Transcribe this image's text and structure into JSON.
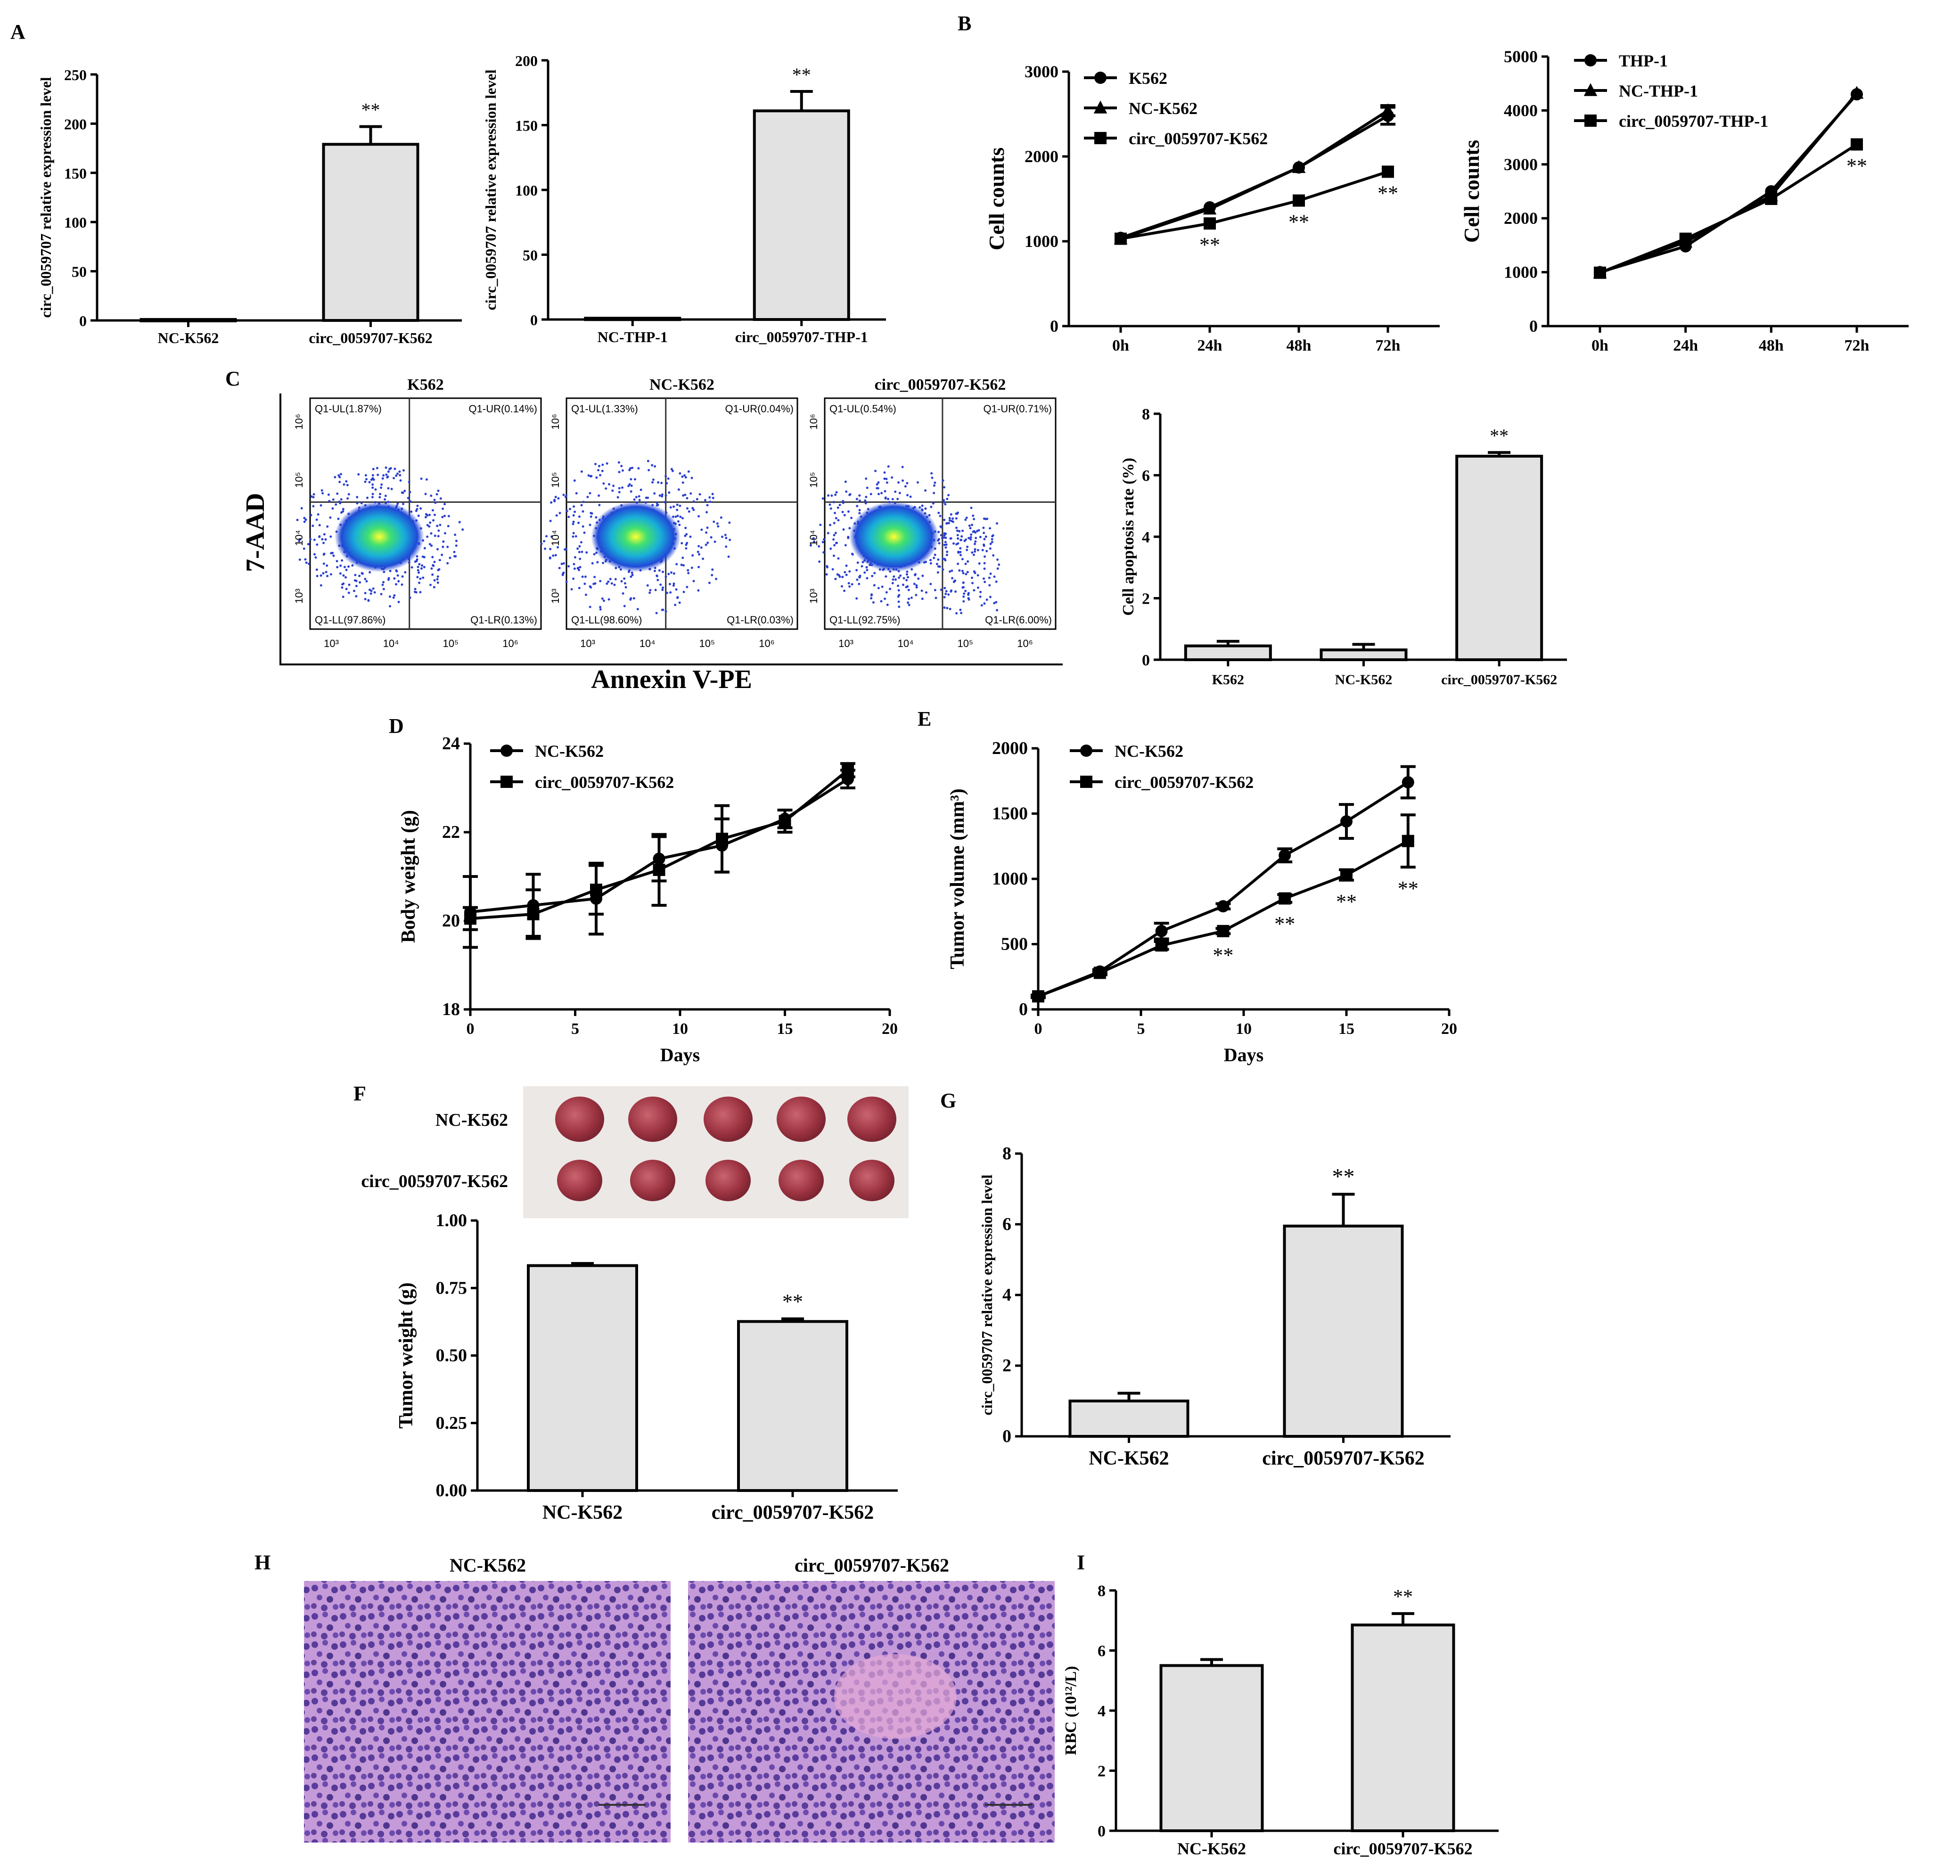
{
  "panel_labels": {
    "A": "A",
    "B": "B",
    "C": "C",
    "D": "D",
    "E": "E",
    "F": "F",
    "G": "G",
    "H": "H",
    "I": "I"
  },
  "sig": "**",
  "colors": {
    "bar": "#e2e2e2",
    "ink": "#000000",
    "hne": "#b46ac0",
    "tumor": "#a8434f",
    "photo_bg": "#ece8e6"
  },
  "chart_data": [
    {
      "id": "A1",
      "type": "bar",
      "ylabel": "circ_0059707 relative expression level",
      "categories": [
        "NC-K562",
        "circ_0059707-K562"
      ],
      "values": [
        1,
        179
      ],
      "errors": [
        0,
        18
      ],
      "ylim": [
        0,
        250
      ],
      "yticks": [
        "0",
        "50",
        "100",
        "150",
        "200",
        "250"
      ],
      "sig_index": [
        1
      ]
    },
    {
      "id": "A2",
      "type": "bar",
      "ylabel": "circ_0059707 relative expression level",
      "categories": [
        "NC-THP-1",
        "circ_0059707-THP-1"
      ],
      "values": [
        1,
        161
      ],
      "errors": [
        0,
        15
      ],
      "ylim": [
        0,
        200
      ],
      "yticks": [
        "0",
        "50",
        "100",
        "150",
        "200"
      ],
      "sig_index": [
        1
      ]
    },
    {
      "id": "B1",
      "type": "line",
      "ylabel": "Cell counts",
      "categories": [
        "0h",
        "24h",
        "48h",
        "72h"
      ],
      "ylim": [
        0,
        3000
      ],
      "yticks": [
        "0",
        "1000",
        "2000",
        "3000"
      ],
      "series": [
        {
          "name": "K562",
          "marker": "circle",
          "values": [
            1040,
            1400,
            1870,
            2480
          ],
          "errors": [
            0,
            0,
            0,
            100
          ]
        },
        {
          "name": "NC-K562",
          "marker": "triangle",
          "values": [
            1030,
            1380,
            1870,
            2540
          ],
          "errors": [
            0,
            0,
            0,
            60
          ]
        },
        {
          "name": "circ_0059707-K562",
          "marker": "square",
          "values": [
            1030,
            1210,
            1480,
            1820
          ],
          "errors": [
            0,
            0,
            0,
            0
          ]
        }
      ],
      "sig_points": [
        "24h",
        "48h",
        "72h"
      ]
    },
    {
      "id": "B2",
      "type": "line",
      "ylabel": "Cell counts",
      "categories": [
        "0h",
        "24h",
        "48h",
        "72h"
      ],
      "ylim": [
        0,
        5000
      ],
      "yticks": [
        "0",
        "1000",
        "2000",
        "3000",
        "4000",
        "5000"
      ],
      "series": [
        {
          "name": "THP-1",
          "marker": "circle",
          "values": [
            1000,
            1480,
            2500,
            4300
          ],
          "errors": [
            0,
            0,
            0,
            0
          ]
        },
        {
          "name": "NC-THP-1",
          "marker": "triangle",
          "values": [
            990,
            1560,
            2420,
            4320
          ],
          "errors": [
            0,
            0,
            0,
            0
          ]
        },
        {
          "name": "circ_0059707-THP-1",
          "marker": "square",
          "values": [
            990,
            1620,
            2360,
            3370
          ],
          "errors": [
            0,
            0,
            0,
            0
          ]
        }
      ],
      "sig_points": [
        "72h"
      ]
    },
    {
      "id": "C_flow",
      "type": "scatter",
      "xlabel": "Annexin V-PE",
      "ylabel": "7-AAD",
      "xticks": [
        "10³",
        "10⁴",
        "10⁵",
        "10⁶"
      ],
      "yticks": [
        "10³",
        "10⁴",
        "10⁵",
        "10⁶"
      ],
      "plots": [
        {
          "title": "K562",
          "UL": "Q1-UL(1.87%)",
          "UR": "Q1-UR(0.14%)",
          "LL": "Q1-LL(97.86%)",
          "LR": "Q1-LR(0.13%)"
        },
        {
          "title": "NC-K562",
          "UL": "Q1-UL(1.33%)",
          "UR": "Q1-UR(0.04%)",
          "LL": "Q1-LL(98.60%)",
          "LR": "Q1-LR(0.03%)"
        },
        {
          "title": "circ_0059707-K562",
          "UL": "Q1-UL(0.54%)",
          "UR": "Q1-UR(0.71%)",
          "LL": "Q1-LL(92.75%)",
          "LR": "Q1-LR(6.00%)"
        }
      ]
    },
    {
      "id": "C_bar",
      "type": "bar",
      "ylabel": "Cell apoptosis rate (%)",
      "categories": [
        "K562",
        "NC-K562",
        "circ_0059707-K562"
      ],
      "values": [
        0.45,
        0.32,
        6.62
      ],
      "errors": [
        0.15,
        0.18,
        0.12
      ],
      "ylim": [
        0,
        8
      ],
      "yticks": [
        "0",
        "2",
        "4",
        "6",
        "8"
      ],
      "sig_index": [
        2
      ]
    },
    {
      "id": "D",
      "type": "line",
      "xlabel": "Days",
      "ylabel": "Body weight (g)",
      "x": [
        0,
        3,
        6,
        9,
        12,
        15,
        18
      ],
      "xlim": [
        0,
        20
      ],
      "xticks": [
        "0",
        "5",
        "10",
        "15",
        "20"
      ],
      "ylim": [
        18,
        24
      ],
      "yticks": [
        "18",
        "20",
        "22",
        "24"
      ],
      "series": [
        {
          "name": "NC-K562",
          "marker": "circle",
          "values": [
            20.2,
            20.35,
            20.5,
            21.4,
            21.7,
            22.3,
            23.2
          ],
          "errors": [
            0.8,
            0.7,
            0.8,
            0.5,
            0.6,
            0.2,
            0.2
          ]
        },
        {
          "name": "circ_0059707-K562",
          "marker": "square",
          "values": [
            20.05,
            20.15,
            20.7,
            21.15,
            21.85,
            22.25,
            23.4
          ],
          "errors": [
            0.25,
            0.55,
            0.55,
            0.8,
            0.75,
            0.25,
            0.15
          ]
        }
      ]
    },
    {
      "id": "E",
      "type": "line",
      "xlabel": "Days",
      "ylabel": "Tumor volume (mm³)",
      "x": [
        0,
        3,
        6,
        9,
        12,
        15,
        18
      ],
      "xlim": [
        0,
        20
      ],
      "xticks": [
        "0",
        "5",
        "10",
        "15",
        "20"
      ],
      "ylim": [
        0,
        2000
      ],
      "yticks": [
        "0",
        "500",
        "1000",
        "1500",
        "2000"
      ],
      "series": [
        {
          "name": "NC-K562",
          "marker": "circle",
          "values": [
            100,
            290,
            600,
            790,
            1180,
            1440,
            1740
          ],
          "errors": [
            10,
            15,
            60,
            20,
            50,
            130,
            120
          ]
        },
        {
          "name": "circ_0059707-K562",
          "marker": "square",
          "values": [
            100,
            280,
            490,
            600,
            850,
            1030,
            1290
          ],
          "errors": [
            10,
            15,
            30,
            20,
            30,
            40,
            200
          ]
        }
      ],
      "sig_x": [
        9,
        12,
        15,
        18
      ]
    },
    {
      "id": "F",
      "type": "bar",
      "ylabel": "Tumor weight (g)",
      "categories": [
        "NC-K562",
        "circ_0059707-K562"
      ],
      "values": [
        0.833,
        0.626
      ],
      "errors": [
        0.008,
        0.01
      ],
      "ylim": [
        0,
        1
      ],
      "yticks": [
        "0.00",
        "0.25",
        "0.50",
        "0.75",
        "1.00"
      ],
      "sig_index": [
        1
      ],
      "photo_rows": [
        "NC-K562",
        "circ_0059707-K562"
      ]
    },
    {
      "id": "G",
      "type": "bar",
      "ylabel": "circ_0059707 relative expression level",
      "categories": [
        "NC-K562",
        "circ_0059707-K562"
      ],
      "values": [
        1.0,
        5.95
      ],
      "errors": [
        0.22,
        0.9
      ],
      "ylim": [
        0,
        8
      ],
      "yticks": [
        "0",
        "2",
        "4",
        "6",
        "8"
      ],
      "sig_index": [
        1
      ]
    },
    {
      "id": "H",
      "type": "image",
      "titles": [
        "NC-K562",
        "circ_0059707-K562"
      ]
    },
    {
      "id": "I",
      "type": "bar",
      "ylabel": "RBC (10¹²/L)",
      "categories": [
        "NC-K562",
        "circ_0059707-K562"
      ],
      "values": [
        5.5,
        6.85
      ],
      "errors": [
        0.2,
        0.38
      ],
      "ylim": [
        0,
        8
      ],
      "yticks": [
        "0",
        "2",
        "4",
        "6",
        "8"
      ],
      "sig_index": [
        1
      ]
    }
  ]
}
